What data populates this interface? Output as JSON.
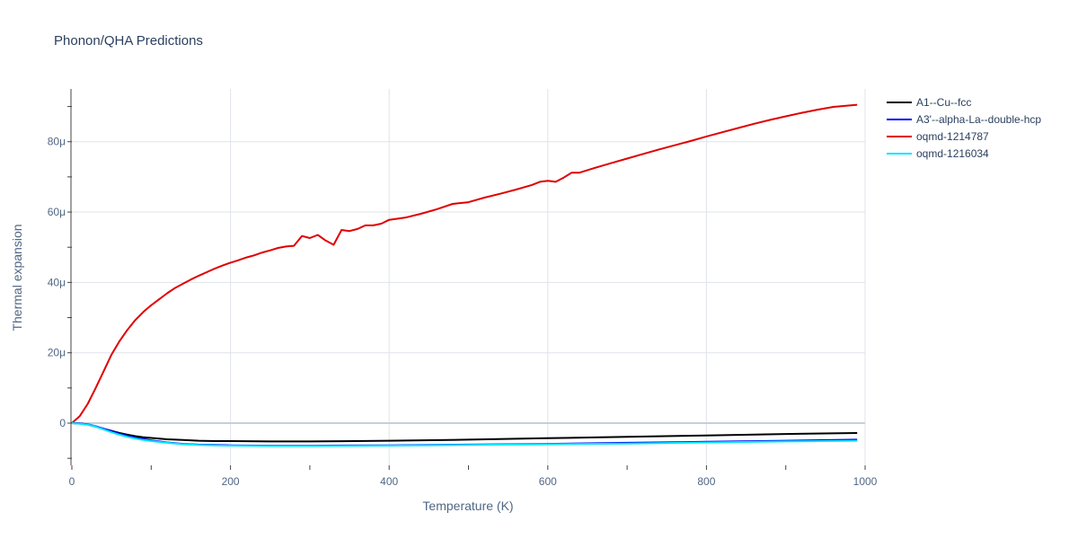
{
  "chart_data": {
    "type": "line",
    "title": "Phonon/QHA Predictions",
    "xlabel": "Temperature (K)",
    "ylabel": "Thermal expansion",
    "xlim": [
      0,
      1000
    ],
    "ylim": [
      -12,
      95
    ],
    "x_ticks": [
      0,
      200,
      400,
      600,
      800,
      1000
    ],
    "x_tick_labels": [
      "0",
      "200",
      "400",
      "600",
      "800",
      "1000"
    ],
    "y_ticks": [
      0,
      20,
      40,
      60,
      80
    ],
    "y_tick_labels": [
      "0",
      "20μ",
      "40μ",
      "60μ",
      "80μ"
    ],
    "grid": true,
    "legend_position": "top-right",
    "series": [
      {
        "name": "A1--Cu--fcc",
        "color": "#000000",
        "x": [
          0,
          10,
          20,
          30,
          40,
          50,
          60,
          70,
          80,
          90,
          100,
          120,
          140,
          160,
          180,
          200,
          250,
          300,
          400,
          500,
          600,
          700,
          800,
          900,
          990
        ],
        "y": [
          0,
          -0.1,
          -0.4,
          -1.0,
          -1.6,
          -2.2,
          -2.8,
          -3.3,
          -3.7,
          -4.0,
          -4.2,
          -4.6,
          -4.8,
          -5.0,
          -5.1,
          -5.1,
          -5.2,
          -5.2,
          -5.0,
          -4.7,
          -4.3,
          -3.9,
          -3.5,
          -3.1,
          -2.8
        ]
      },
      {
        "name": "A3'--alpha-La--double-hcp",
        "color": "#0000ff",
        "x": [
          0,
          10,
          20,
          30,
          40,
          50,
          60,
          70,
          80,
          90,
          100,
          120,
          140,
          160,
          180,
          200,
          250,
          300,
          400,
          500,
          600,
          700,
          800,
          900,
          990
        ],
        "y": [
          0,
          -0.1,
          -0.3,
          -0.9,
          -1.6,
          -2.3,
          -3.0,
          -3.6,
          -4.1,
          -4.5,
          -4.9,
          -5.5,
          -5.9,
          -6.1,
          -6.2,
          -6.3,
          -6.4,
          -6.4,
          -6.3,
          -6.1,
          -5.9,
          -5.6,
          -5.3,
          -5.0,
          -4.7
        ]
      },
      {
        "name": "oqmd-1214787",
        "color": "#e00000",
        "x": [
          0,
          10,
          20,
          30,
          40,
          50,
          60,
          70,
          80,
          90,
          100,
          110,
          120,
          130,
          140,
          150,
          160,
          170,
          180,
          190,
          200,
          210,
          220,
          230,
          240,
          250,
          260,
          270,
          280,
          290,
          300,
          310,
          320,
          330,
          340,
          350,
          360,
          370,
          380,
          390,
          400,
          420,
          440,
          460,
          480,
          500,
          520,
          540,
          560,
          580,
          590,
          600,
          610,
          620,
          630,
          640,
          660,
          680,
          700,
          720,
          740,
          760,
          780,
          800,
          820,
          840,
          860,
          880,
          900,
          920,
          940,
          960,
          990
        ],
        "y": [
          0,
          2.0,
          5.5,
          10.0,
          14.7,
          19.5,
          23.3,
          26.5,
          29.3,
          31.6,
          33.5,
          35.2,
          36.9,
          38.4,
          39.6,
          40.8,
          41.9,
          42.9,
          43.9,
          44.8,
          45.6,
          46.3,
          47.1,
          47.7,
          48.5,
          49.1,
          49.8,
          50.2,
          50.4,
          53.2,
          52.6,
          53.5,
          51.9,
          50.7,
          54.9,
          54.6,
          55.2,
          56.2,
          56.2,
          56.7,
          57.8,
          58.4,
          59.5,
          60.8,
          62.3,
          62.8,
          64.1,
          65.2,
          66.4,
          67.7,
          68.6,
          68.9,
          68.6,
          69.8,
          71.2,
          71.2,
          72.6,
          73.9,
          75.2,
          76.5,
          77.8,
          79.0,
          80.2,
          81.5,
          82.7,
          83.9,
          85.1,
          86.2,
          87.2,
          88.2,
          89.1,
          89.9,
          90.5
        ]
      },
      {
        "name": "oqmd-1216034",
        "color": "#00e5ff",
        "x": [
          0,
          10,
          20,
          30,
          40,
          50,
          60,
          70,
          80,
          90,
          100,
          120,
          140,
          160,
          180,
          200,
          250,
          300,
          400,
          500,
          600,
          700,
          800,
          900,
          990
        ],
        "y": [
          0,
          -0.2,
          -0.4,
          -1.0,
          -1.8,
          -2.6,
          -3.3,
          -3.9,
          -4.4,
          -4.8,
          -5.1,
          -5.6,
          -6.0,
          -6.2,
          -6.3,
          -6.4,
          -6.5,
          -6.5,
          -6.4,
          -6.2,
          -6.0,
          -5.8,
          -5.5,
          -5.2,
          -5.0
        ]
      }
    ]
  }
}
